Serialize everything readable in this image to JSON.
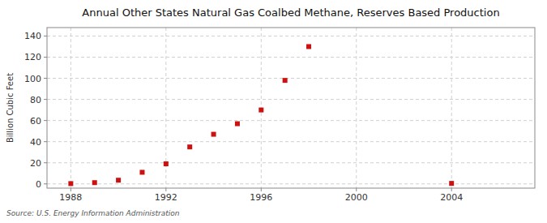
{
  "chart_data": {
    "type": "scatter",
    "title": "Annual Other States Natural Gas Coalbed Methane, Reserves Based Production",
    "ylabel": "Billion Cubic Feet",
    "annotations": [
      "Source: U.S. Energy Information Administration"
    ],
    "x": [
      1988,
      1989,
      1990,
      1991,
      1992,
      1993,
      1994,
      1995,
      1996,
      1997,
      1998,
      2004
    ],
    "values": [
      0.3,
      1.2,
      3.5,
      11.0,
      19.0,
      35.0,
      47.0,
      57.0,
      70.0,
      98.0,
      130.0,
      0.5
    ],
    "color": "#cc1111",
    "marker": "square",
    "xlim": [
      1987.0,
      2007.5
    ],
    "ylim": [
      -4,
      148
    ],
    "xticks": [
      1988,
      1992,
      1996,
      2000,
      2004
    ],
    "yticks": [
      0,
      20,
      40,
      60,
      80,
      100,
      120,
      140
    ],
    "grid": true
  }
}
